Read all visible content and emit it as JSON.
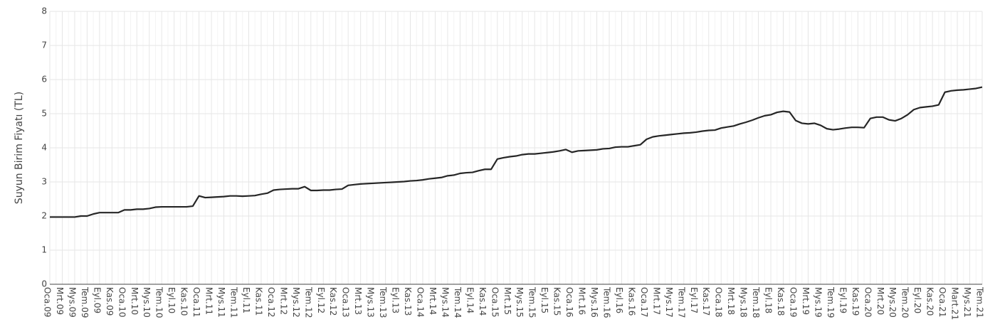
{
  "chart_data": {
    "type": "line",
    "y_label": "Suyun Birim Fiyatı (TL)",
    "categories": [
      "Oca.09",
      null,
      "Mrt.09",
      null,
      "Mys.09",
      null,
      "Tem.09",
      null,
      "Eyl.09",
      null,
      "Kas.09",
      null,
      "Oca.10",
      null,
      "Mrt.10",
      null,
      "Mys.10",
      null,
      "Tem.10",
      null,
      "Eyl.10",
      null,
      "Kas.10",
      null,
      "Oca.11",
      null,
      "Mrt.11",
      null,
      "Mys.11",
      null,
      "Tem.11",
      null,
      "Eyl.11",
      null,
      "Kas.11",
      null,
      "Oca.12",
      null,
      "Mrt.12",
      null,
      "Mys.12",
      null,
      "Tem.12",
      null,
      "Eyl.12",
      null,
      "Kas.12",
      null,
      "Oca.13",
      null,
      "Mrt.13",
      null,
      "Mys.13",
      null,
      "Tem.13",
      null,
      "Eyl.13",
      null,
      "Kas.13",
      null,
      "Oca.14",
      null,
      "Mrt.14",
      null,
      "Mys.14",
      null,
      "Tem.14",
      null,
      "Eyl.14",
      null,
      "Kas.14",
      null,
      "Oca.15",
      null,
      "Mrt.15",
      null,
      "Mys.15",
      null,
      "Tem.15",
      null,
      "Eyl.15",
      null,
      "Kas.15",
      null,
      "Oca.16",
      null,
      "Mrt.16",
      null,
      "Mys.16",
      null,
      "Tem.16",
      null,
      "Eyl.16",
      null,
      "Kas.16",
      null,
      "Oca.17",
      null,
      "Mrt.17",
      null,
      "Mys.17",
      null,
      "Tem.17",
      null,
      "Eyl.17",
      null,
      "Kas.17",
      null,
      "Oca.18",
      null,
      "Mrt.18",
      null,
      "Mys.18",
      null,
      "Tem.18",
      null,
      "Eyl.18",
      null,
      "Kas.18",
      null,
      "Oca.19",
      null,
      "Mrt.19",
      null,
      "Mys.19",
      null,
      "Tem.19",
      null,
      "Eyl.19",
      null,
      "Kas.19",
      null,
      "Oca.20",
      null,
      "Mrt.20",
      null,
      "Mys.20",
      null,
      "Tem.20",
      null,
      "Eyl.20",
      null,
      "Kas.20",
      null,
      "Oca.21",
      null,
      "Mart.21",
      null,
      "Mys.21",
      null,
      "Tem.21"
    ],
    "values": [
      1.97,
      1.97,
      1.97,
      1.97,
      1.97,
      2.0,
      2.0,
      2.06,
      2.1,
      2.1,
      2.1,
      2.1,
      2.18,
      2.18,
      2.2,
      2.2,
      2.22,
      2.26,
      2.27,
      2.27,
      2.27,
      2.27,
      2.27,
      2.29,
      2.59,
      2.54,
      2.55,
      2.56,
      2.57,
      2.59,
      2.59,
      2.58,
      2.59,
      2.6,
      2.64,
      2.67,
      2.76,
      2.78,
      2.79,
      2.8,
      2.8,
      2.86,
      2.75,
      2.75,
      2.76,
      2.76,
      2.78,
      2.79,
      2.9,
      2.92,
      2.94,
      2.95,
      2.96,
      2.97,
      2.98,
      2.99,
      3.0,
      3.01,
      3.03,
      3.04,
      3.06,
      3.09,
      3.11,
      3.13,
      3.18,
      3.2,
      3.25,
      3.27,
      3.28,
      3.33,
      3.37,
      3.37,
      3.67,
      3.71,
      3.74,
      3.76,
      3.8,
      3.82,
      3.82,
      3.84,
      3.86,
      3.88,
      3.91,
      3.95,
      3.87,
      3.91,
      3.92,
      3.93,
      3.94,
      3.97,
      3.98,
      4.02,
      4.03,
      4.03,
      4.06,
      4.09,
      4.25,
      4.32,
      4.35,
      4.37,
      4.39,
      4.41,
      4.43,
      4.44,
      4.46,
      4.49,
      4.51,
      4.52,
      4.58,
      4.61,
      4.64,
      4.7,
      4.75,
      4.81,
      4.88,
      4.94,
      4.97,
      5.04,
      5.07,
      5.05,
      4.8,
      4.72,
      4.7,
      4.72,
      4.66,
      4.56,
      4.53,
      4.55,
      4.58,
      4.6,
      4.6,
      4.59,
      4.86,
      4.9,
      4.9,
      4.82,
      4.79,
      4.86,
      4.97,
      5.12,
      5.18,
      5.2,
      5.22,
      5.26,
      5.63,
      5.67,
      5.69,
      5.7,
      5.72,
      5.74,
      5.78
    ],
    "color": "#262626",
    "ylim": [
      0,
      8
    ],
    "yticks": [
      0,
      1,
      2,
      3,
      4,
      5,
      6,
      7,
      8
    ],
    "grid": true
  }
}
